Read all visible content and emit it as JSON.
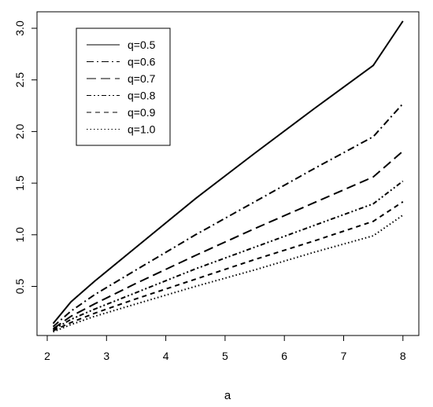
{
  "chart_data": {
    "type": "line",
    "title": "",
    "xlabel": "a",
    "ylabel": "",
    "xlim": [
      2.0,
      8.0
    ],
    "ylim": [
      0.05,
      3.1
    ],
    "x_ticks": [
      2,
      3,
      4,
      5,
      6,
      7,
      8
    ],
    "y_ticks": [
      0.5,
      1.0,
      1.5,
      2.0,
      2.5,
      3.0
    ],
    "x_tick_labels": [
      "2",
      "3",
      "4",
      "5",
      "6",
      "7",
      "8"
    ],
    "y_tick_labels": [
      "0.5",
      "1.0",
      "1.5",
      "2.0",
      "2.5",
      "3.0"
    ],
    "grid": false,
    "legend_position": "top-left",
    "series": [
      {
        "name": "q=0.5",
        "dash": "solid",
        "x": [
          2.1,
          2.4,
          2.8,
          3.5,
          4.5,
          5.5,
          6.5,
          7.5,
          8.0
        ],
        "y": [
          0.14,
          0.35,
          0.55,
          0.88,
          1.35,
          1.79,
          2.22,
          2.64,
          3.07
        ]
      },
      {
        "name": "q=0.6",
        "dash": "dashdot",
        "x": [
          2.1,
          2.4,
          2.8,
          3.5,
          4.5,
          5.5,
          6.5,
          7.5,
          8.0
        ],
        "y": [
          0.11,
          0.26,
          0.42,
          0.66,
          1.0,
          1.32,
          1.64,
          1.95,
          2.27
        ]
      },
      {
        "name": "q=0.7",
        "dash": "longdash",
        "x": [
          2.1,
          2.4,
          2.8,
          3.5,
          4.5,
          5.5,
          6.5,
          7.5,
          8.0
        ],
        "y": [
          0.09,
          0.21,
          0.33,
          0.53,
          0.8,
          1.06,
          1.31,
          1.56,
          1.81
        ]
      },
      {
        "name": "q=0.8",
        "dash": "twodash",
        "x": [
          2.1,
          2.4,
          2.8,
          3.5,
          4.5,
          5.5,
          6.5,
          7.5,
          8.0
        ],
        "y": [
          0.08,
          0.18,
          0.28,
          0.44,
          0.67,
          0.88,
          1.09,
          1.3,
          1.52
        ]
      },
      {
        "name": "q=0.9",
        "dash": "dashed",
        "x": [
          2.1,
          2.4,
          2.8,
          3.5,
          4.5,
          5.5,
          6.5,
          7.5,
          8.0
        ],
        "y": [
          0.07,
          0.15,
          0.24,
          0.38,
          0.57,
          0.76,
          0.94,
          1.13,
          1.32
        ]
      },
      {
        "name": "q=1.0",
        "dash": "dotted",
        "x": [
          2.1,
          2.4,
          2.8,
          3.5,
          4.5,
          5.5,
          6.5,
          7.5,
          8.0
        ],
        "y": [
          0.06,
          0.13,
          0.21,
          0.33,
          0.5,
          0.66,
          0.83,
          0.99,
          1.19
        ]
      }
    ]
  }
}
